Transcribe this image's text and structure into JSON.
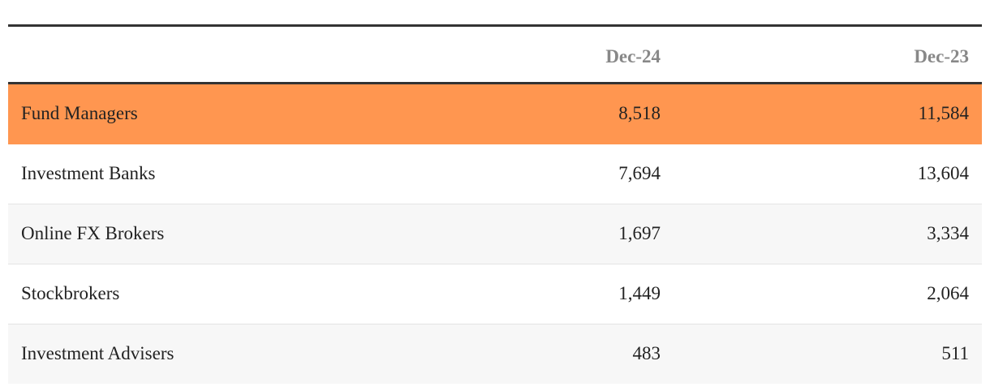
{
  "table": {
    "columns": [
      "Dec-24",
      "Dec-23"
    ],
    "rows": [
      [
        "Fund Managers",
        "8,518",
        "11,584"
      ],
      [
        "Investment Banks",
        "7,694",
        "13,604"
      ],
      [
        "Online FX Brokers",
        "1,697",
        "3,334"
      ],
      [
        "Stockbrokers",
        "1,449",
        "2,064"
      ],
      [
        "Investment Advisers",
        "483",
        "511"
      ]
    ]
  }
}
